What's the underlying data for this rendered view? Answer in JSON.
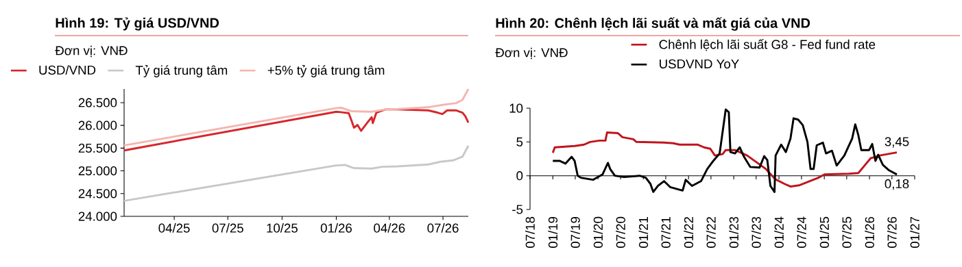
{
  "chart_data": [
    {
      "type": "line",
      "title": "Hình 19: Tỷ giá USD/VND",
      "subtitle": "Đơn vị: VNĐ",
      "legend": "top",
      "xlim": [
        "2025-01-06",
        "2026-08-13"
      ],
      "ylim": [
        24000,
        26800
      ],
      "xticks": [
        {
          "value": "2025-04-01",
          "label": "04/25"
        },
        {
          "value": "2025-07-01",
          "label": "07/25"
        },
        {
          "value": "2025-10-01",
          "label": "10/25"
        },
        {
          "value": "2026-01-01",
          "label": "01/26"
        },
        {
          "value": "2026-04-01",
          "label": "04/26"
        },
        {
          "value": "2026-07-01",
          "label": "07/26"
        }
      ],
      "yticks": [
        {
          "value": 24000,
          "label": "24.000"
        },
        {
          "value": 24500,
          "label": "24.500"
        },
        {
          "value": 25000,
          "label": "25.000"
        },
        {
          "value": 25500,
          "label": "25.500"
        },
        {
          "value": 26000,
          "label": "26.000"
        },
        {
          "value": 26500,
          "label": "26.500"
        }
      ],
      "series": [
        {
          "name": "USD/VND",
          "color": "#d7262b",
          "x": [
            "2025-01-06",
            "2026-01-01",
            "2026-01-09",
            "2026-01-22",
            "2026-01-27",
            "2026-01-31",
            "2026-02-06",
            "2026-02-12",
            "2026-02-22",
            "2026-03-02",
            "2026-03-04",
            "2026-03-10",
            "2026-03-25",
            "2026-04-15",
            "2026-05-11",
            "2026-06-06",
            "2026-06-22",
            "2026-06-30",
            "2026-07-08",
            "2026-07-23",
            "2026-08-03",
            "2026-08-08",
            "2026-08-13"
          ],
          "values": [
            25450,
            26300,
            26290,
            26270,
            26100,
            25950,
            26010,
            25880,
            26050,
            26180,
            26050,
            26280,
            26350,
            26350,
            26340,
            26330,
            26280,
            26250,
            26330,
            26330,
            26280,
            26200,
            26060
          ]
        },
        {
          "name": "Tỷ giá trung tâm",
          "color": "#c8c8c8",
          "x": [
            "2025-01-06",
            "2026-01-01",
            "2026-01-16",
            "2026-01-31",
            "2026-03-02",
            "2026-03-20",
            "2026-04-15",
            "2026-06-06",
            "2026-06-27",
            "2026-07-18",
            "2026-08-03",
            "2026-08-13"
          ],
          "values": [
            24340,
            25120,
            25130,
            25060,
            25050,
            25090,
            25100,
            25140,
            25200,
            25230,
            25310,
            25550
          ]
        },
        {
          "name": "+5% tỷ giá trung tâm",
          "color": "#f4b6b0",
          "x": [
            "2025-01-06",
            "2026-01-01",
            "2026-01-09",
            "2026-01-27",
            "2026-03-02",
            "2026-03-25",
            "2026-04-15",
            "2026-06-06",
            "2026-06-30",
            "2026-07-23",
            "2026-08-03",
            "2026-08-13"
          ],
          "values": [
            25560,
            26380,
            26390,
            26310,
            26300,
            26350,
            26360,
            26400,
            26450,
            26490,
            26560,
            26800
          ]
        }
      ]
    },
    {
      "type": "line",
      "title": "Hình 20: Chênh lệch lãi suất và mất giá của VND",
      "subtitle": "Đơn vị: VNĐ",
      "legend": "top right",
      "xlim": [
        "2018-07-01",
        "2027-01-01"
      ],
      "ylim": [
        -5,
        10
      ],
      "yticks": [
        -5,
        0,
        5,
        10
      ],
      "xticks": [
        {
          "value": "2018-07-01",
          "label": "07/18"
        },
        {
          "value": "2019-01-01",
          "label": "01/19"
        },
        {
          "value": "2019-07-01",
          "label": "07/19"
        },
        {
          "value": "2020-01-01",
          "label": "01/20"
        },
        {
          "value": "2020-07-01",
          "label": "07/20"
        },
        {
          "value": "2021-01-01",
          "label": "01/21"
        },
        {
          "value": "2021-07-01",
          "label": "07/21"
        },
        {
          "value": "2022-01-01",
          "label": "01/22"
        },
        {
          "value": "2022-07-01",
          "label": "07/22"
        },
        {
          "value": "2023-01-01",
          "label": "01/23"
        },
        {
          "value": "2023-07-01",
          "label": "07/23"
        },
        {
          "value": "2024-01-01",
          "label": "01/24"
        },
        {
          "value": "2024-07-01",
          "label": "07/24"
        },
        {
          "value": "2025-01-01",
          "label": "01/25"
        },
        {
          "value": "2025-07-01",
          "label": "07/25"
        },
        {
          "value": "2026-01-01",
          "label": "01/26"
        },
        {
          "value": "2026-07-01",
          "label": "07/26"
        },
        {
          "value": "2027-01-01",
          "label": "01/27"
        }
      ],
      "annotations": [
        {
          "text": "3,45",
          "x": "2026-08-10",
          "y": 3.45
        },
        {
          "text": "0,18",
          "x": "2026-08-10",
          "y": 0.18
        }
      ],
      "series": [
        {
          "name": "Chênh lệch lãi suất G8 - Fed fund rate",
          "color": "#c0141c",
          "x": [
            "2019-01-01",
            "2019-01-17",
            "2019-06-26",
            "2019-09-10",
            "2019-10-29",
            "2020-01-12",
            "2020-03-01",
            "2020-03-14",
            "2020-06-10",
            "2020-07-16",
            "2020-10-12",
            "2020-11-06",
            "2021-06-17",
            "2021-09-01",
            "2021-10-20",
            "2022-03-17",
            "2022-05-06",
            "2022-06-25",
            "2022-08-02",
            "2022-10-03",
            "2022-10-28",
            "2023-01-11",
            "2023-04-19",
            "2023-07-03",
            "2023-09-17",
            "2023-12-01",
            "2024-02-14",
            "2024-04-03",
            "2024-06-17",
            "2024-11-14",
            "2025-01-03",
            "2025-07-19",
            "2025-10-03",
            "2025-11-22",
            "2026-01-11",
            "2026-03-25",
            "2026-08-10"
          ],
          "values": [
            3.4,
            4.2,
            4.4,
            4.6,
            5.0,
            5.2,
            5.2,
            6.4,
            6.3,
            5.7,
            5.4,
            5.0,
            4.9,
            4.8,
            4.6,
            4.6,
            4.2,
            4.0,
            3.0,
            3.2,
            3.8,
            3.8,
            3.0,
            2.0,
            1.0,
            -0.5,
            -1.2,
            -1.6,
            -1.4,
            -0.3,
            0.2,
            0.3,
            0.4,
            1.5,
            2.6,
            3.0,
            3.45
          ]
        },
        {
          "name": "USDVND YoY",
          "color": "#000000",
          "x": [
            "2019-01-01",
            "2019-02-24",
            "2019-04-13",
            "2019-06-02",
            "2019-06-26",
            "2019-07-21",
            "2019-08-16",
            "2019-11-23",
            "2020-02-07",
            "2020-03-21",
            "2020-04-08",
            "2020-05-16",
            "2020-07-29",
            "2020-12-02",
            "2021-01-21",
            "2021-02-27",
            "2021-03-22",
            "2021-04-29",
            "2021-06-17",
            "2021-08-07",
            "2021-11-14",
            "2021-12-09",
            "2022-01-29",
            "2022-04-12",
            "2022-06-01",
            "2022-07-20",
            "2022-09-09",
            "2022-10-28",
            "2022-11-22",
            "2022-12-05",
            "2023-01-11",
            "2023-02-18",
            "2023-03-25",
            "2023-05-14",
            "2023-07-28",
            "2023-09-04",
            "2023-09-29",
            "2023-10-24",
            "2023-11-26",
            "2023-12-05",
            "2024-01-19",
            "2024-02-26",
            "2024-04-03",
            "2024-04-28",
            "2024-06-04",
            "2024-07-11",
            "2024-08-18",
            "2024-09-12",
            "2024-10-07",
            "2024-11-01",
            "2024-12-21",
            "2025-01-15",
            "2025-03-04",
            "2025-04-11",
            "2025-06-12",
            "2025-08-14",
            "2025-09-08",
            "2025-10-03",
            "2025-10-27",
            "2025-12-29",
            "2026-01-23",
            "2026-02-18",
            "2026-03-12",
            "2026-04-19",
            "2026-06-08",
            "2026-08-10"
          ],
          "values": [
            2.2,
            2.2,
            1.8,
            2.8,
            2.2,
            0.0,
            -0.3,
            -0.6,
            0.2,
            1.9,
            1.0,
            0.0,
            -0.2,
            0.0,
            -0.3,
            -1.2,
            -2.4,
            -1.5,
            -0.8,
            -1.7,
            -2.2,
            -0.6,
            -1.5,
            -0.8,
            1.0,
            2.2,
            3.3,
            9.8,
            9.4,
            3.5,
            3.3,
            4.2,
            2.8,
            1.3,
            1.2,
            2.9,
            2.3,
            -1.5,
            -2.4,
            3.0,
            4.6,
            3.5,
            5.5,
            8.5,
            8.3,
            7.5,
            5.0,
            1.0,
            1.0,
            4.5,
            4.9,
            3.3,
            3.7,
            1.5,
            3.0,
            5.5,
            7.6,
            6.0,
            3.8,
            3.8,
            4.7,
            2.2,
            3.1,
            1.6,
            0.8,
            0.18
          ]
        }
      ]
    }
  ]
}
